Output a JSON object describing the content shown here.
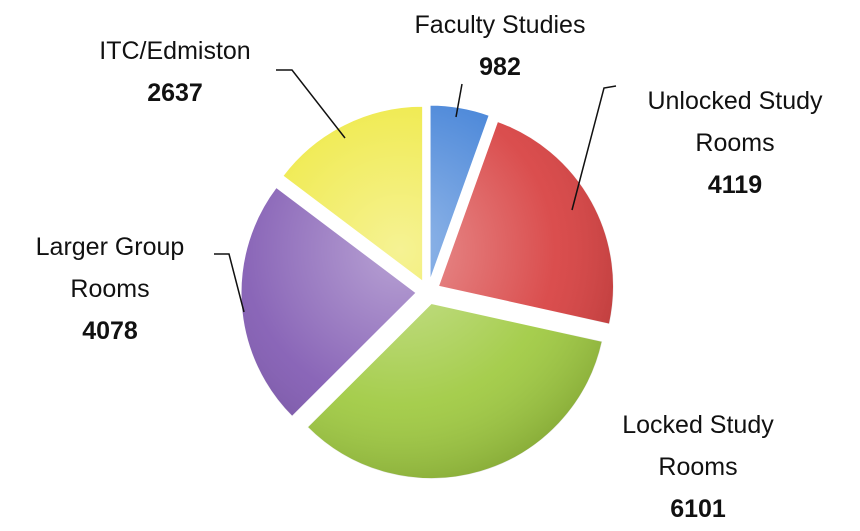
{
  "chart_data": {
    "type": "pie",
    "categories": [
      "Faculty Studies",
      "Unlocked Study Rooms",
      "Locked Study Rooms",
      "Larger Group Rooms",
      "ITC/Edmiston"
    ],
    "values": [
      982,
      4119,
      6101,
      4078,
      2637
    ],
    "colors": [
      "#3d7ed6",
      "#d63a3a",
      "#9cc83a",
      "#7d55b0",
      "#eee83c"
    ]
  }
}
